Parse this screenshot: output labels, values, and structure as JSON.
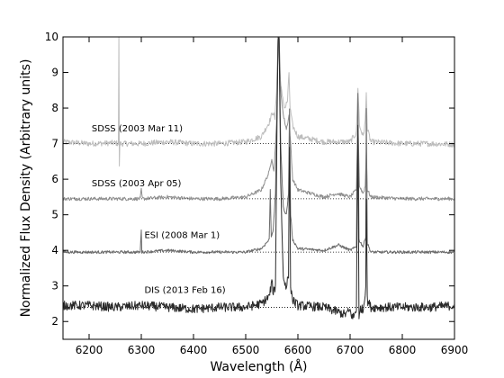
{
  "chart_data": {
    "type": "line",
    "xlabel": "Wavelength (Å)",
    "ylabel": "Normalized Flux Density (Arbitrary units)",
    "xlim": [
      6150,
      6900
    ],
    "ylim": [
      1.5,
      10
    ],
    "x_ticks": [
      6200,
      6300,
      6400,
      6500,
      6600,
      6700,
      6800,
      6900
    ],
    "y_ticks": [
      2,
      3,
      4,
      5,
      6,
      7,
      8,
      9,
      10
    ],
    "grid": false,
    "legend": "none",
    "continuum_reference_levels": [
      7.0,
      5.45,
      3.95,
      2.4
    ],
    "series": [
      {
        "name": "SDSS (2003 Mar 11)",
        "color": "#bdbdbd",
        "baseline": 7.0,
        "noise": 0.08,
        "points": [
          [
            6150,
            7.05
          ],
          [
            6200,
            7.0
          ],
          [
            6250,
            7.02
          ],
          [
            6256,
            7.0
          ],
          [
            6257,
            10
          ],
          [
            6258,
            6.4
          ],
          [
            6259,
            7.0
          ],
          [
            6300,
            7.0
          ],
          [
            6350,
            7.05
          ],
          [
            6400,
            7.0
          ],
          [
            6450,
            7.0
          ],
          [
            6500,
            7.05
          ],
          [
            6530,
            7.2
          ],
          [
            6545,
            7.6
          ],
          [
            6552,
            7.9
          ],
          [
            6556,
            7.7
          ],
          [
            6559,
            8.5
          ],
          [
            6562,
            10
          ],
          [
            6563,
            10
          ],
          [
            6565,
            9.0
          ],
          [
            6570,
            8.3
          ],
          [
            6575,
            8.0
          ],
          [
            6580,
            8.2
          ],
          [
            6583,
            9.0
          ],
          [
            6585,
            8.0
          ],
          [
            6590,
            7.5
          ],
          [
            6600,
            7.2
          ],
          [
            6650,
            7.05
          ],
          [
            6700,
            7.05
          ],
          [
            6712,
            7.3
          ],
          [
            6715,
            8.6
          ],
          [
            6718,
            7.5
          ],
          [
            6725,
            7.2
          ],
          [
            6729,
            7.6
          ],
          [
            6731,
            8.4
          ],
          [
            6733,
            7.4
          ],
          [
            6740,
            7.05
          ],
          [
            6800,
            7.0
          ],
          [
            6850,
            7.0
          ],
          [
            6900,
            6.98
          ]
        ]
      },
      {
        "name": "SDSS (2003 Apr 05)",
        "color": "#8f8f8f",
        "baseline": 5.45,
        "noise": 0.05,
        "points": [
          [
            6150,
            5.45
          ],
          [
            6200,
            5.45
          ],
          [
            6250,
            5.45
          ],
          [
            6298,
            5.45
          ],
          [
            6300,
            5.7
          ],
          [
            6302,
            5.45
          ],
          [
            6350,
            5.5
          ],
          [
            6400,
            5.45
          ],
          [
            6450,
            5.45
          ],
          [
            6500,
            5.5
          ],
          [
            6530,
            5.7
          ],
          [
            6545,
            6.2
          ],
          [
            6550,
            6.6
          ],
          [
            6554,
            6.2
          ],
          [
            6559,
            7.5
          ],
          [
            6562,
            10
          ],
          [
            6564,
            10
          ],
          [
            6567,
            8.5
          ],
          [
            6572,
            7.8
          ],
          [
            6578,
            7.4
          ],
          [
            6583,
            7.8
          ],
          [
            6586,
            7.0
          ],
          [
            6590,
            6.0
          ],
          [
            6600,
            5.7
          ],
          [
            6650,
            5.5
          ],
          [
            6675,
            5.6
          ],
          [
            6700,
            5.5
          ],
          [
            6712,
            5.7
          ],
          [
            6715,
            7.6
          ],
          [
            6718,
            5.8
          ],
          [
            6725,
            5.6
          ],
          [
            6729,
            5.8
          ],
          [
            6731,
            6.8
          ],
          [
            6733,
            5.7
          ],
          [
            6740,
            5.5
          ],
          [
            6800,
            5.45
          ],
          [
            6850,
            5.45
          ],
          [
            6900,
            5.45
          ]
        ]
      },
      {
        "name": "ESI (2008 Mar 1)",
        "color": "#6b6b6b",
        "baseline": 3.95,
        "noise": 0.04,
        "points": [
          [
            6150,
            3.95
          ],
          [
            6200,
            3.95
          ],
          [
            6250,
            3.95
          ],
          [
            6298,
            3.95
          ],
          [
            6300,
            4.6
          ],
          [
            6301,
            3.95
          ],
          [
            6350,
            4.0
          ],
          [
            6400,
            3.95
          ],
          [
            6450,
            3.95
          ],
          [
            6500,
            3.95
          ],
          [
            6530,
            4.05
          ],
          [
            6545,
            4.3
          ],
          [
            6547,
            5.7
          ],
          [
            6549,
            4.4
          ],
          [
            6553,
            4.6
          ],
          [
            6557,
            5.6
          ],
          [
            6560,
            8.0
          ],
          [
            6562,
            10
          ],
          [
            6564,
            10
          ],
          [
            6567,
            7.0
          ],
          [
            6572,
            5.2
          ],
          [
            6578,
            5.0
          ],
          [
            6582,
            5.6
          ],
          [
            6584,
            8.0
          ],
          [
            6586,
            5.0
          ],
          [
            6590,
            4.3
          ],
          [
            6600,
            4.05
          ],
          [
            6650,
            4.0
          ],
          [
            6678,
            4.15
          ],
          [
            6700,
            4.0
          ],
          [
            6712,
            4.1
          ],
          [
            6715,
            8.4
          ],
          [
            6717,
            4.3
          ],
          [
            6725,
            4.1
          ],
          [
            6730,
            4.4
          ],
          [
            6731,
            8.0
          ],
          [
            6733,
            4.2
          ],
          [
            6740,
            3.95
          ],
          [
            6800,
            3.95
          ],
          [
            6850,
            3.95
          ],
          [
            6900,
            3.95
          ]
        ]
      },
      {
        "name": "DIS (2013 Feb 16)",
        "color": "#2a2a2a",
        "baseline": 2.4,
        "noise": 0.13,
        "points": [
          [
            6150,
            2.45
          ],
          [
            6200,
            2.45
          ],
          [
            6250,
            2.4
          ],
          [
            6300,
            2.45
          ],
          [
            6350,
            2.4
          ],
          [
            6400,
            2.35
          ],
          [
            6450,
            2.4
          ],
          [
            6500,
            2.4
          ],
          [
            6530,
            2.5
          ],
          [
            6545,
            2.7
          ],
          [
            6550,
            3.1
          ],
          [
            6553,
            2.8
          ],
          [
            6557,
            3.0
          ],
          [
            6560,
            7.5
          ],
          [
            6562,
            10
          ],
          [
            6564,
            10
          ],
          [
            6567,
            6.0
          ],
          [
            6572,
            3.2
          ],
          [
            6578,
            3.0
          ],
          [
            6582,
            3.3
          ],
          [
            6584,
            7.0
          ],
          [
            6586,
            3.0
          ],
          [
            6590,
            2.6
          ],
          [
            6600,
            2.45
          ],
          [
            6650,
            2.4
          ],
          [
            6690,
            2.2
          ],
          [
            6700,
            2.3
          ],
          [
            6705,
            2.1
          ],
          [
            6712,
            2.3
          ],
          [
            6715,
            7.6
          ],
          [
            6717,
            2.0
          ],
          [
            6720,
            2.4
          ],
          [
            6725,
            2.3
          ],
          [
            6730,
            3.0
          ],
          [
            6731,
            5.5
          ],
          [
            6733,
            2.6
          ],
          [
            6740,
            2.4
          ],
          [
            6800,
            2.4
          ],
          [
            6850,
            2.4
          ],
          [
            6900,
            2.45
          ]
        ]
      }
    ],
    "annotations": [
      {
        "text": "SDSS (2003 Mar 11)",
        "x": 6205,
        "y": 7.35
      },
      {
        "text": "SDSS (2003 Apr 05)",
        "x": 6205,
        "y": 5.8
      },
      {
        "text": "ESI (2008 Mar 1)",
        "x": 6306,
        "y": 4.35
      },
      {
        "text": "DIS (2013 Feb 16)",
        "x": 6306,
        "y": 2.8
      }
    ]
  }
}
